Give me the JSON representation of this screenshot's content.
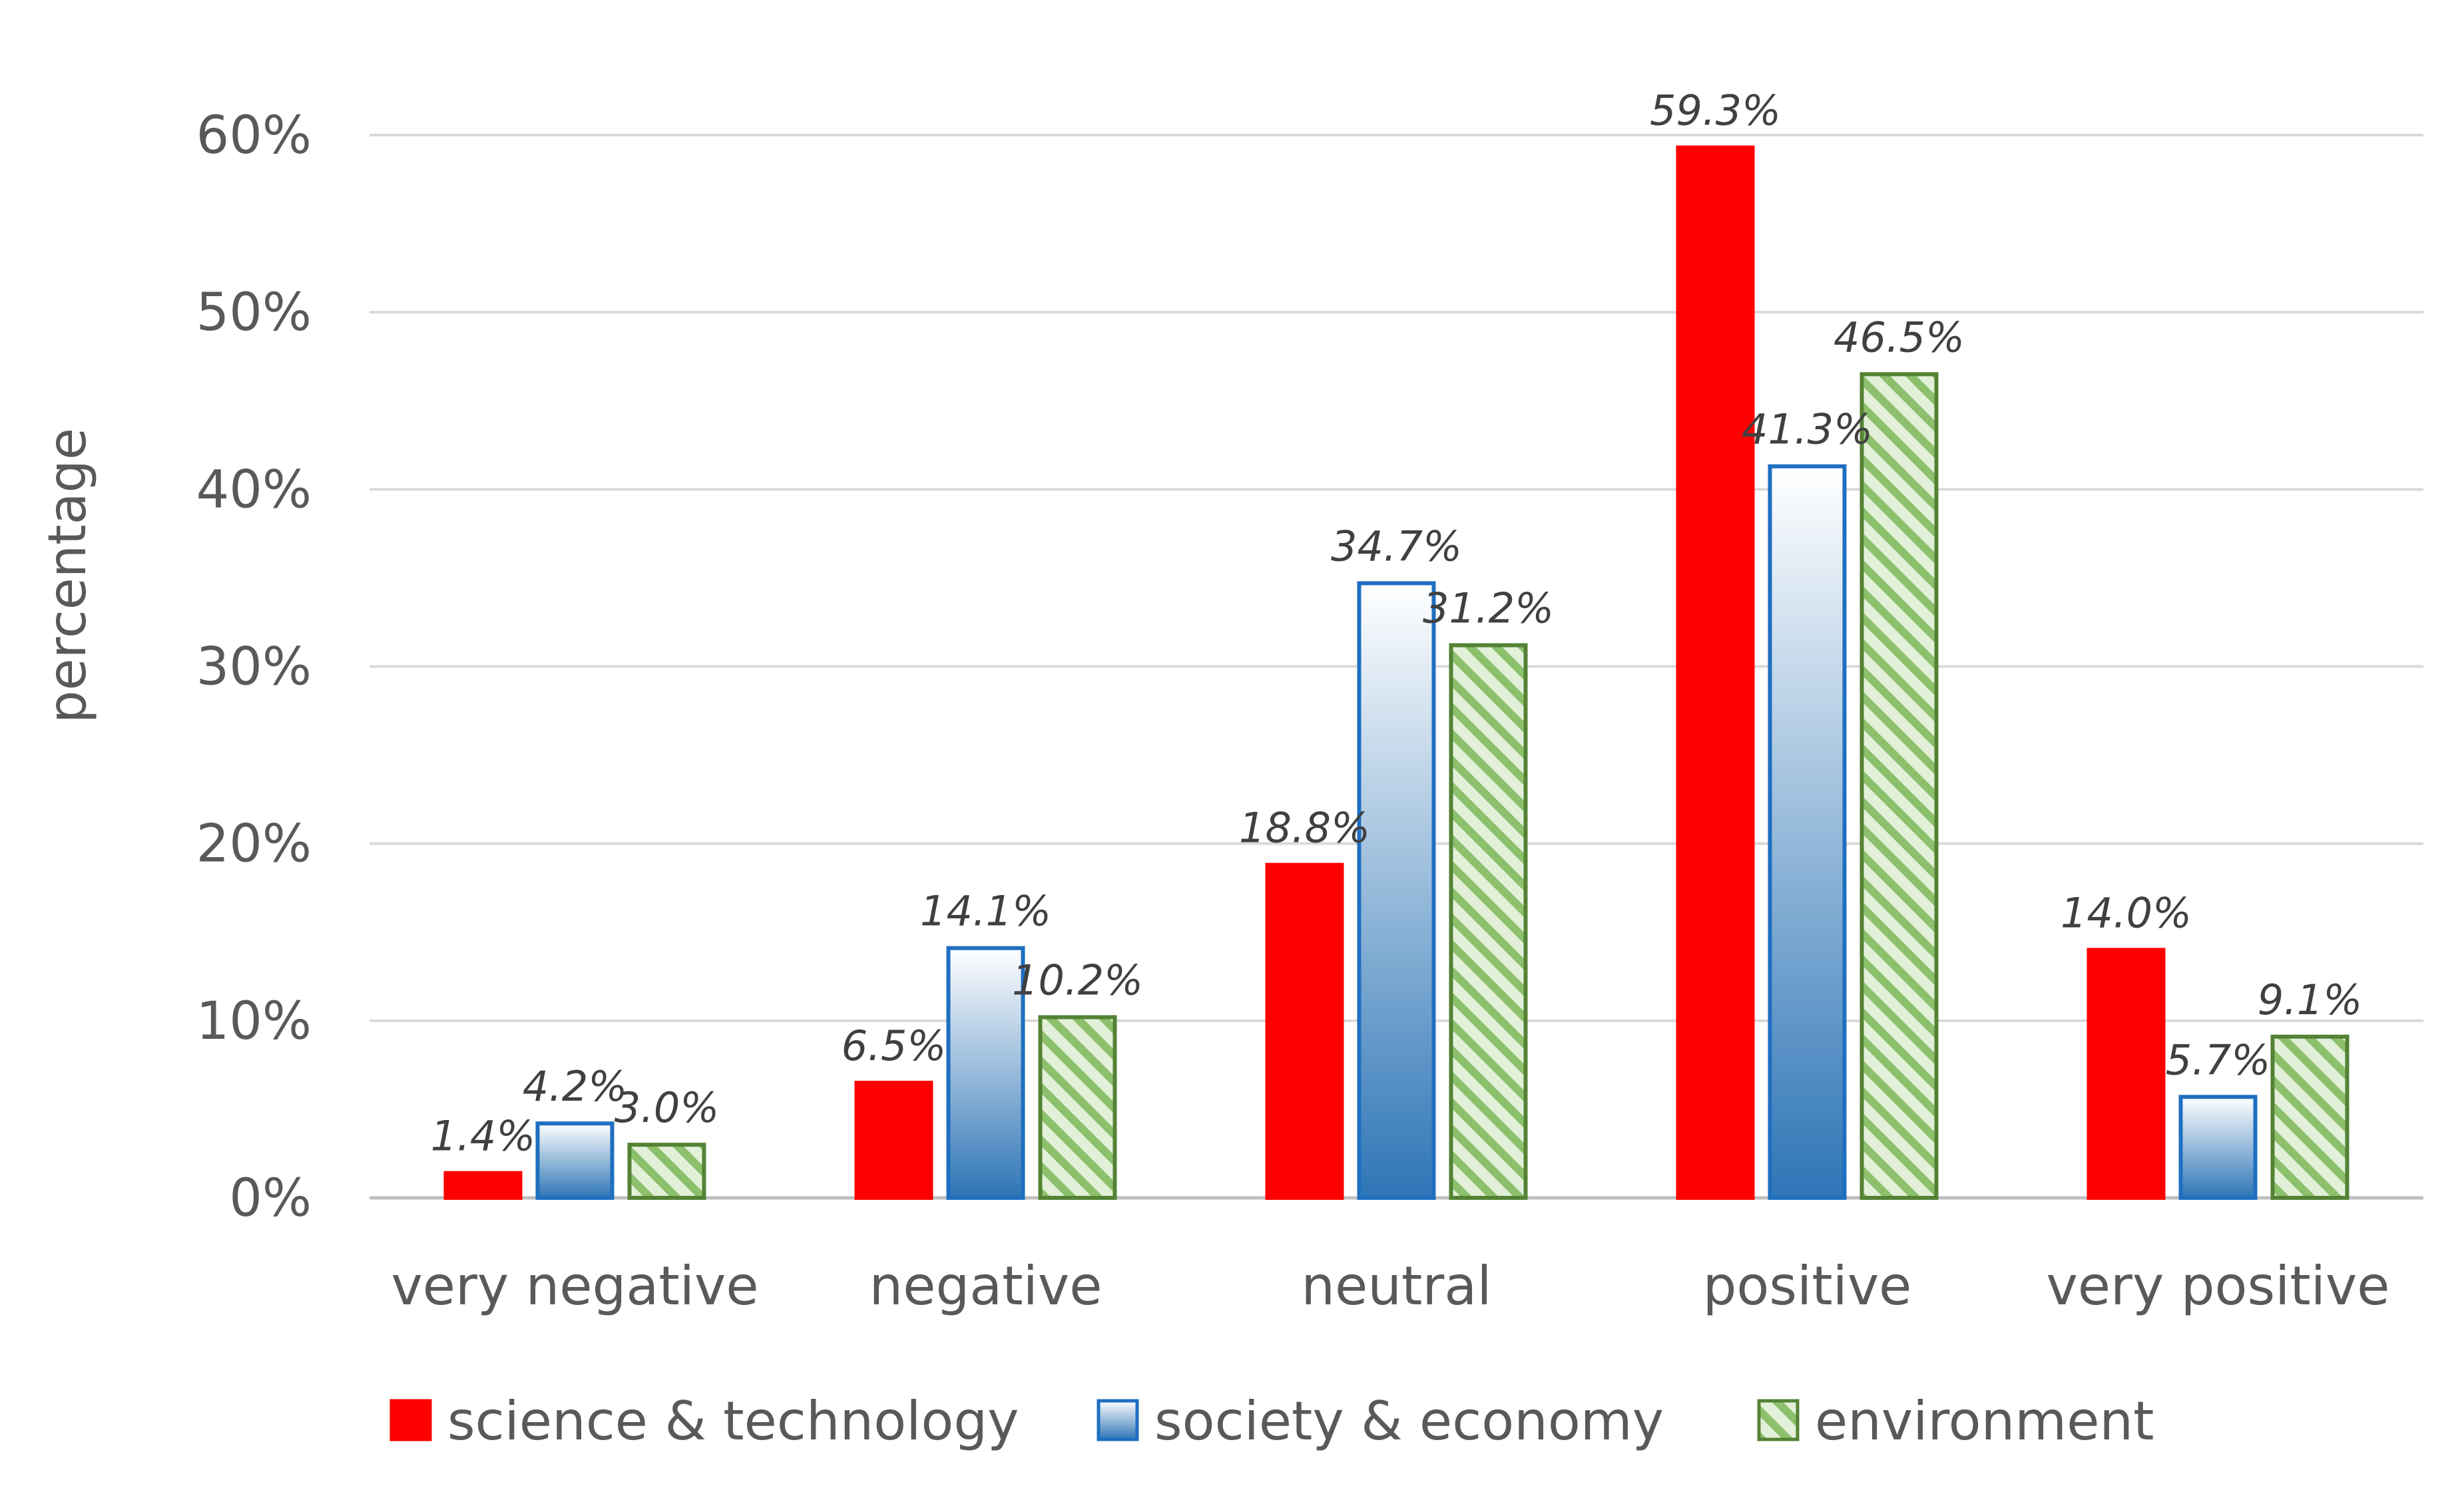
{
  "chart_data": {
    "type": "bar",
    "title": "",
    "xlabel": "",
    "ylabel": "percentage",
    "ylim": [
      0,
      60
    ],
    "y_ticks": [
      0,
      10,
      20,
      30,
      40,
      50,
      60
    ],
    "y_tick_labels": [
      "0%",
      "10%",
      "20%",
      "30%",
      "40%",
      "50%",
      "60%"
    ],
    "categories": [
      "very negative",
      "negative",
      "neutral",
      "positive",
      "very positive"
    ],
    "series": [
      {
        "name": "science & technology",
        "values": [
          1.4,
          6.5,
          18.8,
          59.3,
          14.0
        ],
        "labels": [
          "1.4%",
          "6.5%",
          "18.8%",
          "59.3%",
          "14.0%"
        ],
        "fill": "#ff0000",
        "stroke": "#ff0000",
        "style": "solid"
      },
      {
        "name": "society & economy",
        "values": [
          4.2,
          14.1,
          34.7,
          41.3,
          5.7
        ],
        "labels": [
          "4.2%",
          "14.1%",
          "34.7%",
          "41.3%",
          "5.7%"
        ],
        "fill": "#2e75b6",
        "stroke": "#1f6fc1",
        "style": "gradient",
        "gradient_top": "#ffffff",
        "gradient_bottom": "#2e75b6"
      },
      {
        "name": "environment",
        "values": [
          3.0,
          10.2,
          31.2,
          46.5,
          9.1
        ],
        "labels": [
          "3.0%",
          "10.2%",
          "31.2%",
          "46.5%",
          "9.1%"
        ],
        "fill": "#a9d18e",
        "stroke": "#548235",
        "style": "hatch",
        "hatch_bg": "#e2f0d9",
        "hatch_line": "#8cc06b"
      }
    ],
    "legend": "bottom",
    "grid": true
  }
}
